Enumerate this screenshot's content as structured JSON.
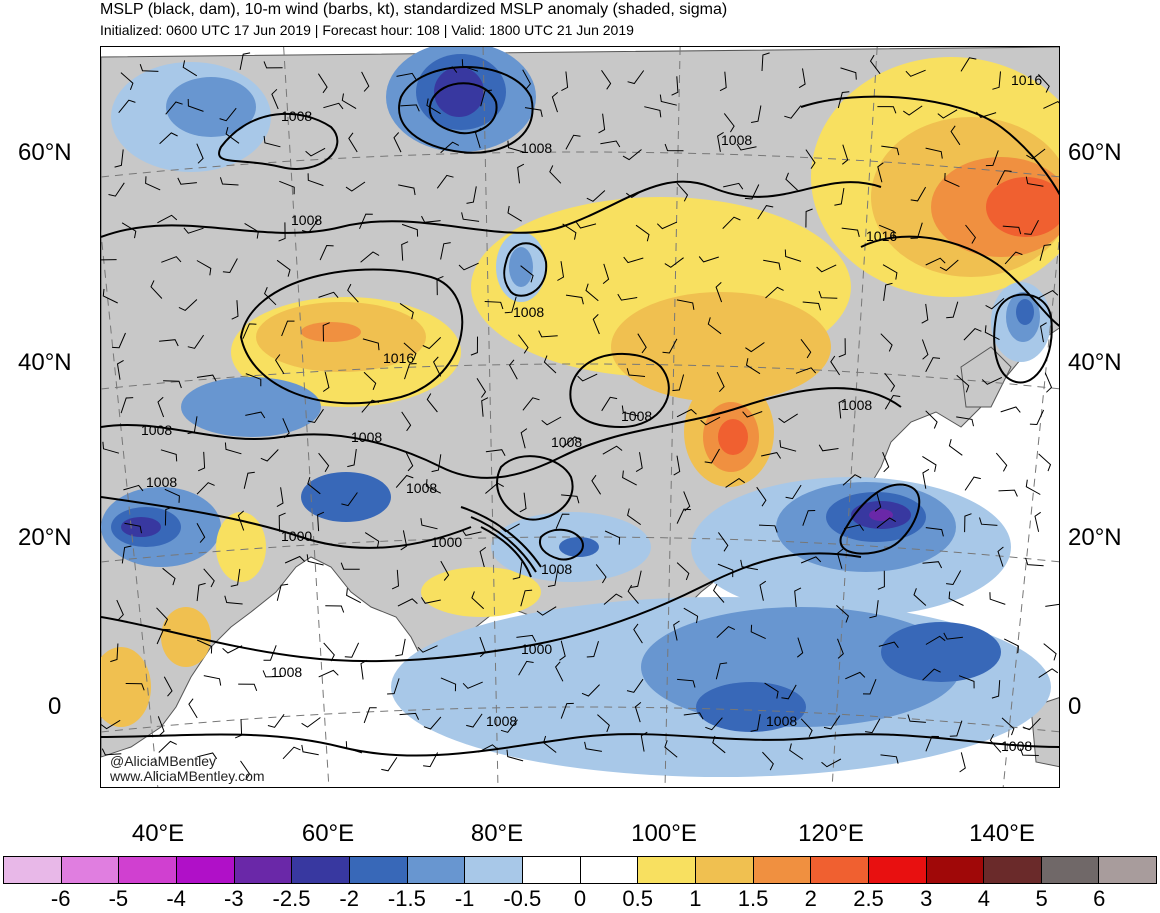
{
  "header": {
    "title": "MSLP (black, dam), 10-m wind (barbs, kt), standardized MSLP anomaly (shaded, sigma)",
    "subtitle": "Initialized: 0600 UTC 17 Jun 2019 | Forecast hour: 108 | Valid: 1800 UTC 21 Jun 2019"
  },
  "map": {
    "lat_labels": [
      "60°N",
      "40°N",
      "20°N",
      "0"
    ],
    "lon_labels": [
      "40°E",
      "60°E",
      "80°E",
      "100°E",
      "120°E",
      "140°E"
    ],
    "isobar_labels": [
      "1008",
      "1008",
      "1008",
      "1008",
      "1008",
      "1008",
      "1008",
      "1008",
      "1008",
      "1008",
      "1008",
      "1008",
      "1008",
      "1008",
      "1008",
      "1008",
      "1008",
      "1016",
      "1016",
      "1016",
      "1000",
      "1000",
      "1000"
    ],
    "credits": [
      "@AliciaMBentley",
      "www.AliciaMBentley.com"
    ],
    "land_color": "#c8c8c8",
    "ocean_color": "#ffffff"
  },
  "colorbar": {
    "labels": [
      "-6",
      "-5",
      "-4",
      "-3",
      "-2.5",
      "-2",
      "-1.5",
      "-1",
      "-0.5",
      "0",
      "0.5",
      "1",
      "1.5",
      "2",
      "2.5",
      "3",
      "4",
      "5",
      "6"
    ],
    "colors": [
      "#e8b8e8",
      "#e07ee0",
      "#d040d0",
      "#b010c8",
      "#6a28a8",
      "#3838a0",
      "#3868b8",
      "#6896d0",
      "#a8c8e8",
      "#ffffff",
      "#ffffff",
      "#f8e060",
      "#f0c050",
      "#f09040",
      "#f06030",
      "#e81010",
      "#a00808",
      "#6a2a2a",
      "#706868",
      "#a89c9c"
    ]
  }
}
